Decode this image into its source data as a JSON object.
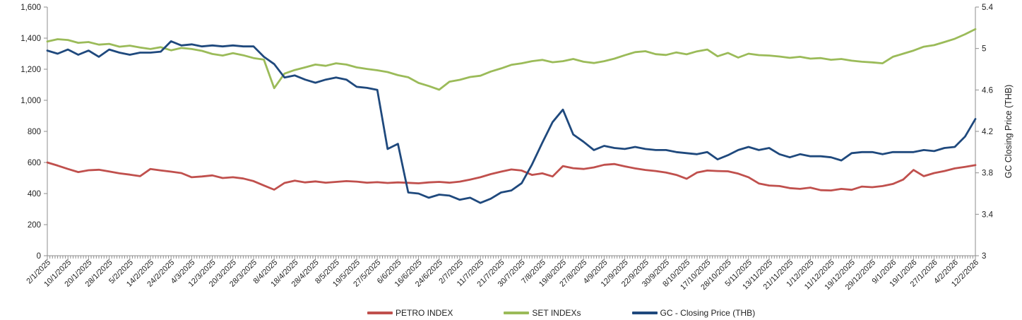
{
  "chart_data": {
    "type": "line",
    "title": "",
    "grid": false,
    "legend_position": "bottom",
    "x_labels": [
      "2/1/2025",
      "10/1/2025",
      "20/1/2025",
      "28/1/2025",
      "5/2/2025",
      "14/2/2025",
      "24/2/2025",
      "4/3/2025",
      "12/3/2025",
      "20/3/2025",
      "28/3/2025",
      "8/4/2025",
      "18/4/2025",
      "28/4/2025",
      "8/5/2025",
      "19/5/2025",
      "27/5/2025",
      "6/6/2025",
      "16/6/2025",
      "24/6/2025",
      "2/7/2025",
      "11/7/2025",
      "21/7/2025",
      "30/7/2025",
      "7/8/2025",
      "19/8/2025",
      "27/8/2025",
      "4/9/2025",
      "12/9/2025",
      "22/9/2025",
      "30/9/2025",
      "8/10/2025",
      "17/10/2025",
      "28/10/2025",
      "5/11/2025",
      "13/11/2025",
      "21/11/2025",
      "1/12/2025",
      "11/12/2025",
      "19/12/2025",
      "29/12/2025",
      "9/1/2026",
      "19/1/2026",
      "27/1/2026",
      "4/2/2026",
      "12/2/2026"
    ],
    "points_per_label_interval": 2,
    "left_axis": {
      "min": 0,
      "max": 1600,
      "step": 200,
      "tick_labels": [
        "0",
        "200",
        "400",
        "600",
        "800",
        "1,000",
        "1,200",
        "1,400",
        "1,600"
      ]
    },
    "right_axis": {
      "min": 3,
      "max": 5.4,
      "step": 0.4,
      "tick_labels": [
        "3",
        "3.4",
        "3.8",
        "4.2",
        "4.6",
        "5",
        "5.4"
      ],
      "title": "GC Closing Price (THB)"
    },
    "series": [
      {
        "name": "PETRO INDEX",
        "axis": "left",
        "color": "#C0504D",
        "values": [
          600,
          580,
          558,
          538,
          550,
          553,
          542,
          530,
          522,
          512,
          558,
          549,
          541,
          532,
          505,
          510,
          517,
          500,
          505,
          497,
          480,
          452,
          425,
          468,
          483,
          472,
          478,
          470,
          475,
          480,
          477,
          470,
          473,
          468,
          472,
          469,
          466,
          472,
          475,
          470,
          477,
          490,
          505,
          525,
          541,
          555,
          548,
          520,
          530,
          510,
          577,
          563,
          558,
          568,
          585,
          590,
          575,
          562,
          552,
          545,
          535,
          520,
          495,
          535,
          548,
          545,
          543,
          528,
          505,
          465,
          452,
          448,
          435,
          430,
          438,
          422,
          420,
          430,
          424,
          445,
          441,
          448,
          462,
          490,
          552,
          512,
          532,
          545,
          562,
          572,
          583
        ]
      },
      {
        "name": "SET INDEXs",
        "axis": "left",
        "color": "#9BBB59",
        "values": [
          1378,
          1393,
          1388,
          1370,
          1375,
          1358,
          1363,
          1345,
          1352,
          1340,
          1330,
          1342,
          1322,
          1337,
          1330,
          1318,
          1298,
          1288,
          1303,
          1290,
          1272,
          1262,
          1078,
          1172,
          1195,
          1212,
          1230,
          1222,
          1238,
          1230,
          1212,
          1202,
          1193,
          1182,
          1162,
          1148,
          1112,
          1092,
          1068,
          1120,
          1132,
          1150,
          1158,
          1185,
          1205,
          1228,
          1238,
          1252,
          1260,
          1245,
          1252,
          1266,
          1248,
          1240,
          1252,
          1268,
          1290,
          1310,
          1316,
          1297,
          1292,
          1308,
          1296,
          1315,
          1327,
          1283,
          1305,
          1275,
          1300,
          1291,
          1288,
          1282,
          1273,
          1280,
          1268,
          1272,
          1261,
          1266,
          1255,
          1248,
          1244,
          1238,
          1280,
          1300,
          1320,
          1345,
          1355,
          1375,
          1396,
          1425,
          1458
        ]
      },
      {
        "name": "GC - Closing Price (THB)",
        "axis": "right",
        "color": "#1F497D",
        "values": [
          4.98,
          4.95,
          4.99,
          4.94,
          4.98,
          4.92,
          4.99,
          4.96,
          4.94,
          4.96,
          4.96,
          4.97,
          5.07,
          5.03,
          5.04,
          5.02,
          5.03,
          5.02,
          5.03,
          5.02,
          5.02,
          4.92,
          4.85,
          4.72,
          4.74,
          4.7,
          4.67,
          4.7,
          4.72,
          4.7,
          4.63,
          4.62,
          4.6,
          4.03,
          4.08,
          3.61,
          3.6,
          3.56,
          3.59,
          3.58,
          3.54,
          3.56,
          3.51,
          3.55,
          3.61,
          3.63,
          3.7,
          3.88,
          4.09,
          4.29,
          4.41,
          4.17,
          4.1,
          4.02,
          4.06,
          4.04,
          4.03,
          4.05,
          4.03,
          4.02,
          4.02,
          4.0,
          3.99,
          3.98,
          4.0,
          3.93,
          3.97,
          4.02,
          4.05,
          4.02,
          4.04,
          3.98,
          3.95,
          3.98,
          3.96,
          3.96,
          3.95,
          3.92,
          3.99,
          4.0,
          4.0,
          3.98,
          4.0,
          4.0,
          4.0,
          4.02,
          4.01,
          4.04,
          4.05,
          4.15,
          4.32
        ]
      }
    ]
  },
  "style": {
    "axis_color": "#8E8E8E",
    "text_color": "#1f1f1f",
    "background": "#FFFFFF"
  }
}
